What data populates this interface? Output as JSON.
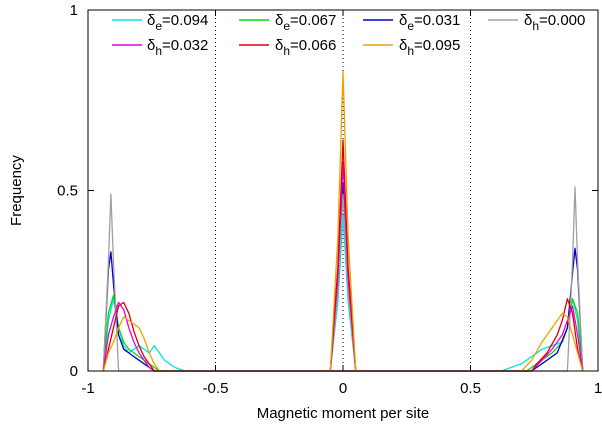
{
  "chart_data": {
    "type": "line",
    "xlabel": "Magnetic moment per site",
    "ylabel": "Frequency",
    "xlim": [
      -1,
      1
    ],
    "ylim": [
      0,
      1
    ],
    "x_ticks": [
      {
        "value": -1,
        "label": "-1"
      },
      {
        "value": -0.5,
        "label": "-0.5"
      },
      {
        "value": 0,
        "label": "0"
      },
      {
        "value": 0.5,
        "label": "0.5"
      },
      {
        "value": 1,
        "label": "1"
      }
    ],
    "y_ticks": [
      {
        "value": 0,
        "label": "0"
      },
      {
        "value": 0.5,
        "label": "0.5"
      },
      {
        "value": 1,
        "label": "1"
      }
    ],
    "vertical_reference_lines": [
      -0.5,
      0,
      0.5
    ],
    "legend_position": "top",
    "series": [
      {
        "name": "δe=0.094",
        "symbol": "δ",
        "sub": "e",
        "value": "=0.094",
        "color": "#00e5e5",
        "points": [
          [
            -0.94,
            0
          ],
          [
            -0.92,
            0.14
          ],
          [
            -0.9,
            0.2
          ],
          [
            -0.88,
            0.12
          ],
          [
            -0.86,
            0.07
          ],
          [
            -0.84,
            0.05
          ],
          [
            -0.82,
            0.06
          ],
          [
            -0.8,
            0.07
          ],
          [
            -0.78,
            0.06
          ],
          [
            -0.76,
            0.05
          ],
          [
            -0.74,
            0.07
          ],
          [
            -0.72,
            0.05
          ],
          [
            -0.7,
            0.03
          ],
          [
            -0.68,
            0.02
          ],
          [
            -0.66,
            0.01
          ],
          [
            -0.62,
            0
          ],
          [
            0.62,
            0
          ],
          [
            0.66,
            0.01
          ],
          [
            0.7,
            0.02
          ],
          [
            0.74,
            0.04
          ],
          [
            0.78,
            0.06
          ],
          [
            0.82,
            0.07
          ],
          [
            0.86,
            0.08
          ],
          [
            0.88,
            0.12
          ],
          [
            0.9,
            0.2
          ],
          [
            0.92,
            0.14
          ],
          [
            0.94,
            0
          ]
        ]
      },
      {
        "name": "δe=0.067",
        "symbol": "δ",
        "sub": "e",
        "value": "=0.067",
        "color": "#00e000",
        "points": [
          [
            -0.94,
            0
          ],
          [
            -0.92,
            0.16
          ],
          [
            -0.9,
            0.21
          ],
          [
            -0.88,
            0.12
          ],
          [
            -0.86,
            0.08
          ],
          [
            -0.84,
            0.06
          ],
          [
            -0.82,
            0.05
          ],
          [
            -0.8,
            0.04
          ],
          [
            -0.78,
            0.03
          ],
          [
            -0.76,
            0.02
          ],
          [
            -0.74,
            0.01
          ],
          [
            -0.72,
            0
          ],
          [
            0.72,
            0
          ],
          [
            0.74,
            0.01
          ],
          [
            0.78,
            0.03
          ],
          [
            0.82,
            0.05
          ],
          [
            0.86,
            0.08
          ],
          [
            0.88,
            0.12
          ],
          [
            0.9,
            0.2
          ],
          [
            0.92,
            0.16
          ],
          [
            0.94,
            0
          ]
        ]
      },
      {
        "name": "δe=0.031",
        "symbol": "δ",
        "sub": "e",
        "value": "=0.031",
        "color": "#0000c8",
        "points": [
          [
            -0.94,
            0
          ],
          [
            -0.92,
            0.28
          ],
          [
            -0.91,
            0.33
          ],
          [
            -0.9,
            0.24
          ],
          [
            -0.88,
            0.1
          ],
          [
            -0.86,
            0.06
          ],
          [
            -0.84,
            0.05
          ],
          [
            -0.82,
            0.04
          ],
          [
            -0.8,
            0.03
          ],
          [
            -0.78,
            0.02
          ],
          [
            -0.76,
            0.01
          ],
          [
            -0.74,
            0
          ],
          [
            0.74,
            0
          ],
          [
            0.76,
            0.01
          ],
          [
            0.8,
            0.03
          ],
          [
            0.84,
            0.05
          ],
          [
            0.88,
            0.12
          ],
          [
            0.9,
            0.27
          ],
          [
            0.91,
            0.34
          ],
          [
            0.92,
            0.28
          ],
          [
            0.94,
            0
          ]
        ]
      },
      {
        "name": "δh=0.000",
        "symbol": "δ",
        "sub": "h",
        "value": "=0.000",
        "color": "#a0a0a0",
        "points": [
          [
            -0.94,
            0
          ],
          [
            -0.92,
            0.3
          ],
          [
            -0.91,
            0.49
          ],
          [
            -0.9,
            0.3
          ],
          [
            -0.88,
            0
          ],
          [
            0.88,
            0
          ],
          [
            0.9,
            0.3
          ],
          [
            0.91,
            0.51
          ],
          [
            0.92,
            0.3
          ],
          [
            0.94,
            0
          ]
        ]
      },
      {
        "name": "δh=0.032",
        "symbol": "δ",
        "sub": "h",
        "value": "=0.032",
        "color": "#e800e8",
        "points": [
          [
            -0.94,
            0
          ],
          [
            -0.92,
            0.1
          ],
          [
            -0.9,
            0.15
          ],
          [
            -0.88,
            0.19
          ],
          [
            -0.86,
            0.17
          ],
          [
            -0.84,
            0.12
          ],
          [
            -0.82,
            0.08
          ],
          [
            -0.8,
            0.05
          ],
          [
            -0.78,
            0.03
          ],
          [
            -0.76,
            0.01
          ],
          [
            -0.74,
            0
          ],
          [
            0.74,
            0
          ],
          [
            0.78,
            0.03
          ],
          [
            0.82,
            0.06
          ],
          [
            0.86,
            0.1
          ],
          [
            0.88,
            0.14
          ],
          [
            0.9,
            0.18
          ],
          [
            0.92,
            0.1
          ],
          [
            0.94,
            0
          ]
        ]
      },
      {
        "name": "δh=0.066",
        "symbol": "δ",
        "sub": "h",
        "value": "=0.066",
        "color": "#e00000",
        "points": [
          [
            -0.94,
            0
          ],
          [
            -0.92,
            0.06
          ],
          [
            -0.9,
            0.12
          ],
          [
            -0.88,
            0.18
          ],
          [
            -0.86,
            0.19
          ],
          [
            -0.84,
            0.16
          ],
          [
            -0.82,
            0.11
          ],
          [
            -0.8,
            0.07
          ],
          [
            -0.78,
            0.04
          ],
          [
            -0.76,
            0.02
          ],
          [
            -0.74,
            0
          ],
          [
            0.74,
            0
          ],
          [
            0.76,
            0.02
          ],
          [
            0.8,
            0.05
          ],
          [
            0.84,
            0.1
          ],
          [
            0.86,
            0.14
          ],
          [
            0.88,
            0.2
          ],
          [
            0.9,
            0.16
          ],
          [
            0.92,
            0.06
          ],
          [
            0.94,
            0
          ]
        ]
      },
      {
        "name": "δh=0.095",
        "symbol": "δ",
        "sub": "h",
        "value": "=0.095",
        "color": "#f0a000",
        "points": [
          [
            -0.94,
            0
          ],
          [
            -0.92,
            0.05
          ],
          [
            -0.9,
            0.08
          ],
          [
            -0.88,
            0.12
          ],
          [
            -0.86,
            0.15
          ],
          [
            -0.84,
            0.14
          ],
          [
            -0.82,
            0.13
          ],
          [
            -0.8,
            0.12
          ],
          [
            -0.78,
            0.09
          ],
          [
            -0.76,
            0.05
          ],
          [
            -0.74,
            0.02
          ],
          [
            -0.72,
            0
          ],
          [
            0.7,
            0
          ],
          [
            0.74,
            0.03
          ],
          [
            0.78,
            0.08
          ],
          [
            0.82,
            0.12
          ],
          [
            0.84,
            0.14
          ],
          [
            0.86,
            0.16
          ],
          [
            0.88,
            0.15
          ],
          [
            0.9,
            0.1
          ],
          [
            0.92,
            0.05
          ],
          [
            0.94,
            0
          ]
        ]
      }
    ],
    "center_peaks": [
      {
        "color": "#00e5e5",
        "peak": 0.43
      },
      {
        "color": "#00e000",
        "peak": 0.52
      },
      {
        "color": "#0000c8",
        "peak": 0.52
      },
      {
        "color": "#a0a0a0",
        "peak": 0.49
      },
      {
        "color": "#e800e8",
        "peak": 0.58
      },
      {
        "color": "#e00000",
        "peak": 0.64
      },
      {
        "color": "#f0a000",
        "peak": 0.83
      }
    ]
  }
}
